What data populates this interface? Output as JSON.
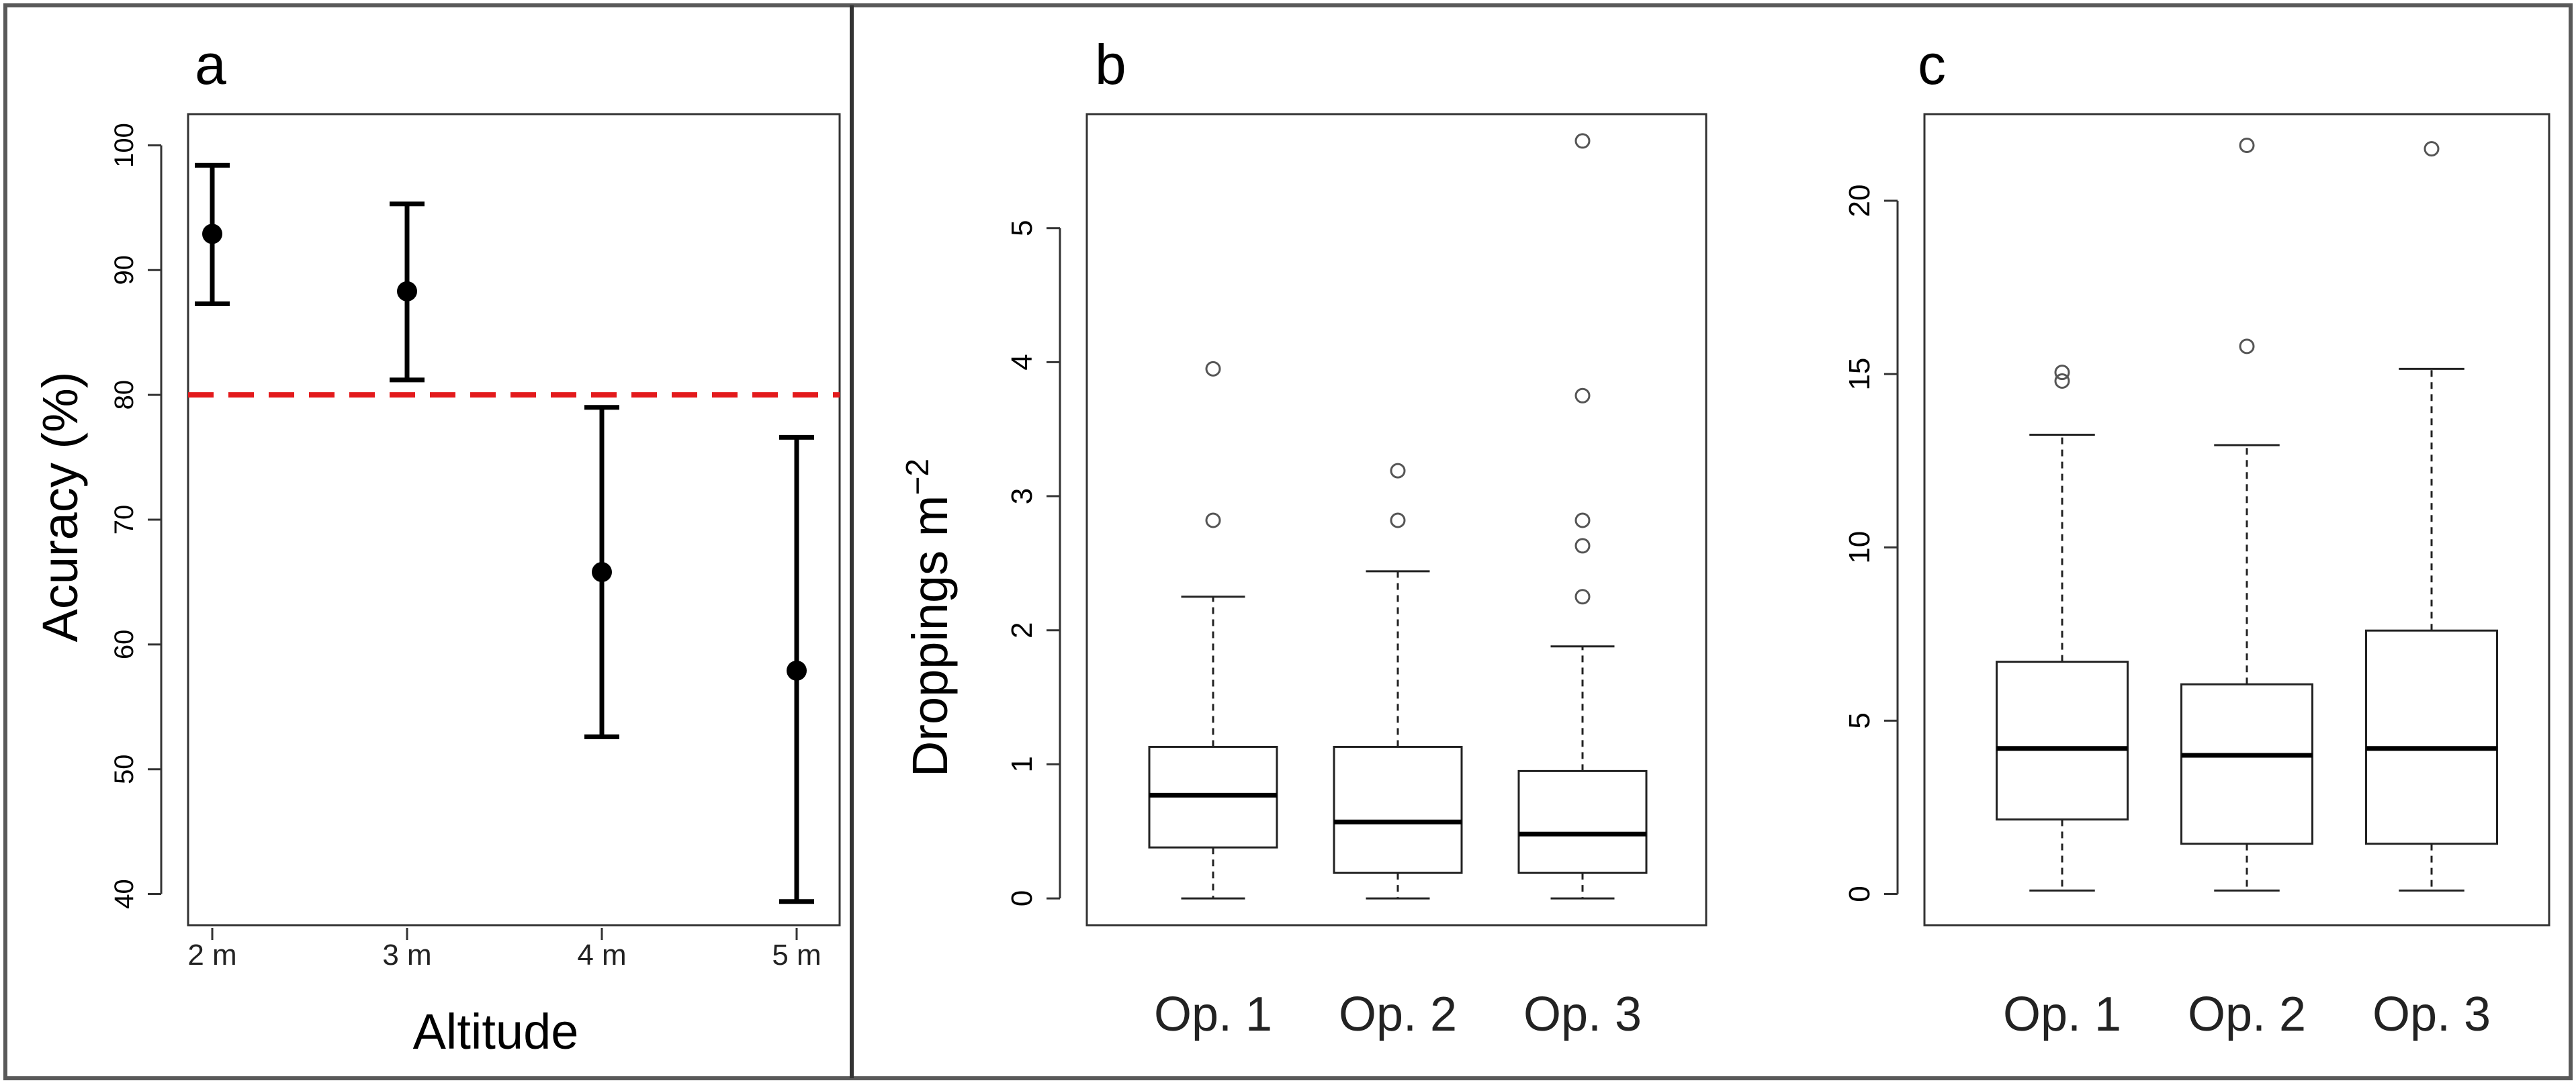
{
  "colors": {
    "frame": "#595959",
    "axis": "#333333",
    "ink": "#000000",
    "outlier": "#555555",
    "reference_line": "#e31a1c"
  },
  "panels": {
    "a": {
      "label": "a"
    },
    "b": {
      "label": "b"
    },
    "c": {
      "label": "c"
    }
  },
  "chart_data": [
    {
      "panel": "a",
      "type": "errorbar",
      "title": "",
      "xlabel": "Altitude",
      "ylabel": "Acuracy (%)",
      "categories": [
        "2 m",
        "3 m",
        "4 m",
        "5 m"
      ],
      "yticks": [
        40,
        50,
        60,
        70,
        80,
        90,
        100
      ],
      "ylim": [
        37.5,
        102.5
      ],
      "reference_line": {
        "y": 80,
        "style": "dashed",
        "color": "#e31a1c"
      },
      "points": [
        {
          "x": "2 m",
          "mean": 92.9,
          "lower": 87.3,
          "upper": 98.4
        },
        {
          "x": "3 m",
          "mean": 88.3,
          "lower": 81.2,
          "upper": 95.3
        },
        {
          "x": "4 m",
          "mean": 65.8,
          "lower": 52.6,
          "upper": 79.0
        },
        {
          "x": "5 m",
          "mean": 57.9,
          "lower": 39.4,
          "upper": 76.6
        }
      ]
    },
    {
      "panel": "b",
      "type": "box",
      "title": "",
      "xlabel": "",
      "ylabel_main": "Droppings m",
      "ylabel_sup": "−2",
      "categories": [
        "Op. 1",
        "Op. 2",
        "Op. 3"
      ],
      "yticks": [
        0,
        1,
        2,
        3,
        4,
        5
      ],
      "ytick_labels": [
        "0",
        "1",
        "2",
        "3",
        "4",
        "5"
      ],
      "ylim": [
        -0.2,
        5.85
      ],
      "boxes": [
        {
          "name": "Op. 1",
          "whisker_low": 0.0,
          "q1": 0.38,
          "median": 0.77,
          "q3": 1.13,
          "whisker_high": 2.25,
          "outliers": [
            2.82,
            3.95
          ]
        },
        {
          "name": "Op. 2",
          "whisker_low": 0.0,
          "q1": 0.19,
          "median": 0.57,
          "q3": 1.13,
          "whisker_high": 2.44,
          "outliers": [
            2.82,
            3.19
          ]
        },
        {
          "name": "Op. 3",
          "whisker_low": 0.0,
          "q1": 0.19,
          "median": 0.48,
          "q3": 0.95,
          "whisker_high": 1.88,
          "outliers": [
            2.25,
            2.63,
            2.82,
            3.75,
            5.65
          ]
        }
      ]
    },
    {
      "panel": "c",
      "type": "box",
      "title": "",
      "xlabel": "",
      "ylabel": "",
      "categories": [
        "Op. 1",
        "Op. 2",
        "Op. 3"
      ],
      "yticks": [
        0,
        5,
        10,
        15,
        20
      ],
      "ytick_labels": [
        "0",
        "5",
        "10",
        "15",
        "20"
      ],
      "ylim": [
        -0.9,
        22.5
      ],
      "boxes": [
        {
          "name": "Op. 1",
          "whisker_low": 0.1,
          "q1": 2.15,
          "median": 4.2,
          "q3": 6.7,
          "whisker_high": 13.25,
          "outliers": [
            14.8,
            15.05
          ]
        },
        {
          "name": "Op. 2",
          "whisker_low": 0.1,
          "q1": 1.45,
          "median": 4.0,
          "q3": 6.05,
          "whisker_high": 12.95,
          "outliers": [
            15.8,
            21.6
          ]
        },
        {
          "name": "Op. 3",
          "whisker_low": 0.1,
          "q1": 1.45,
          "median": 4.2,
          "q3": 7.6,
          "whisker_high": 15.15,
          "outliers": [
            21.5
          ]
        }
      ]
    }
  ]
}
